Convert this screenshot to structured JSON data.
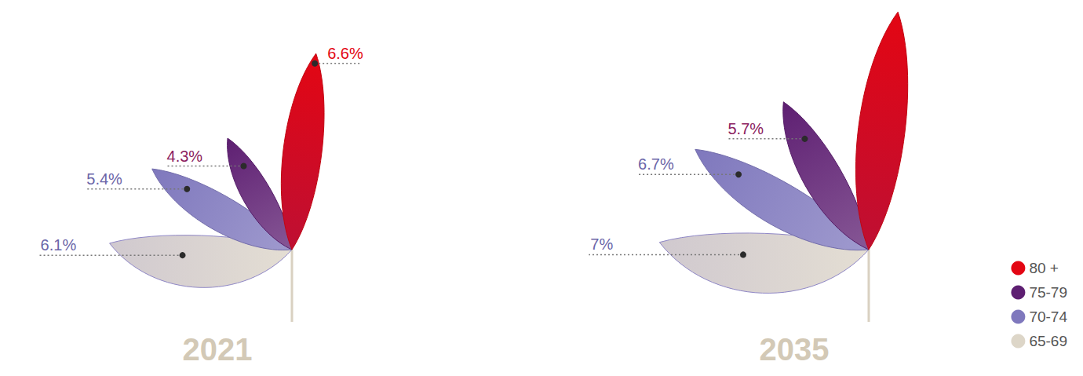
{
  "chart_data": {
    "type": "petal",
    "categories": [
      "2021",
      "2035"
    ],
    "series": [
      {
        "name": "80 +",
        "color": "#e30613",
        "values": [
          6.6,
          8
        ],
        "value_labels": [
          "6.6%",
          null
        ]
      },
      {
        "name": "75-79",
        "color": "#5e1f72",
        "values": [
          4.3,
          5.7
        ],
        "value_labels": [
          "4.3%",
          "5.7%"
        ]
      },
      {
        "name": "70-74",
        "color": "#7f78bd",
        "values": [
          5.4,
          6.7
        ],
        "value_labels": [
          "5.4%",
          "6.7%"
        ]
      },
      {
        "name": "65-69",
        "color": "#ddd6c8",
        "values": [
          6.1,
          7
        ],
        "value_labels": [
          "6.1%",
          "7%"
        ]
      }
    ],
    "ylim": [
      0,
      8
    ],
    "data_labels": true,
    "tick_labels": false,
    "legend": "lower right"
  }
}
